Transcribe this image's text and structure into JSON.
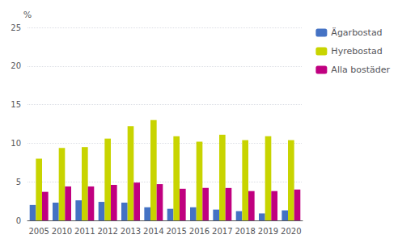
{
  "chart_data": {
    "type": "bar",
    "categories": [
      "2005",
      "2010",
      "2011",
      "2012",
      "2013",
      "2014",
      "2015",
      "2016",
      "2017",
      "2018",
      "2019",
      "2020"
    ],
    "series": [
      {
        "name": "Ägarbostad",
        "color": "#4472c4",
        "values": [
          2.0,
          2.3,
          2.6,
          2.4,
          2.3,
          1.7,
          1.5,
          1.7,
          1.4,
          1.2,
          0.9,
          1.3
        ]
      },
      {
        "name": "Hyrebostad",
        "color": "#c8d400",
        "values": [
          8.0,
          9.4,
          9.5,
          10.6,
          12.2,
          13.0,
          10.9,
          10.2,
          11.1,
          10.4,
          10.9,
          10.4
        ]
      },
      {
        "name": "Alla bostäder",
        "color": "#c00080",
        "values": [
          3.7,
          4.4,
          4.4,
          4.6,
          4.9,
          4.7,
          4.1,
          4.2,
          4.2,
          3.8,
          3.8,
          4.0
        ]
      }
    ],
    "ylabel": "%",
    "ylim": [
      0,
      25
    ],
    "yticks": [
      0,
      5,
      10,
      15,
      20,
      25
    ],
    "grid": true,
    "legend": "upper right"
  }
}
